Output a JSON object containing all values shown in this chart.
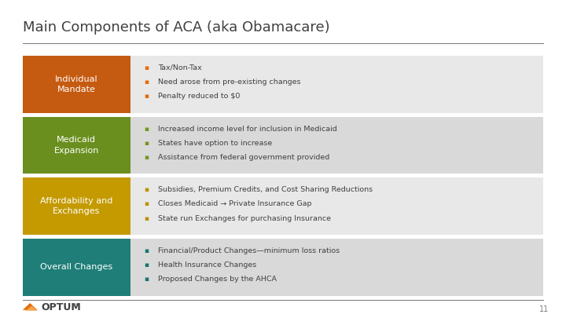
{
  "title": "Main Components of ACA (aka Obamacare)",
  "background_color": "#ffffff",
  "title_color": "#404040",
  "title_fontsize": 13,
  "rows": [
    {
      "label": "Individual\nMandate",
      "label_color": "#ffffff",
      "box_color": "#c55a11",
      "bullet_color": "#e36c09",
      "bullets": [
        "Tax/Non-Tax",
        "Need arose from pre-existing changes",
        "Penalty reduced to $0"
      ],
      "bg_color": "#e8e8e8"
    },
    {
      "label": "Medicaid\nExpansion",
      "label_color": "#ffffff",
      "box_color": "#6a8f1f",
      "bullet_color": "#76961f",
      "bullets": [
        "Increased income level for inclusion in Medicaid",
        "States have option to increase",
        "Assistance from federal government provided"
      ],
      "bg_color": "#d9d9d9"
    },
    {
      "label": "Affordability and\nExchanges",
      "label_color": "#ffffff",
      "box_color": "#c49a00",
      "bullet_color": "#bf9000",
      "bullets": [
        "Subsidies, Premium Credits, and Cost Sharing Reductions",
        "Closes Medicaid → Private Insurance Gap",
        "State run Exchanges for purchasing Insurance"
      ],
      "bg_color": "#e8e8e8"
    },
    {
      "label": "Overall Changes",
      "label_color": "#ffffff",
      "box_color": "#1f7e78",
      "bullet_color": "#17736e",
      "bullets": [
        "Financial/Product Changes—minimum loss ratios",
        "Health Insurance Changes",
        "Proposed Changes by the AHCA"
      ],
      "bg_color": "#d9d9d9"
    }
  ],
  "footer_line_color": "#808080",
  "page_number": "11",
  "separator_line_color": "#808080"
}
